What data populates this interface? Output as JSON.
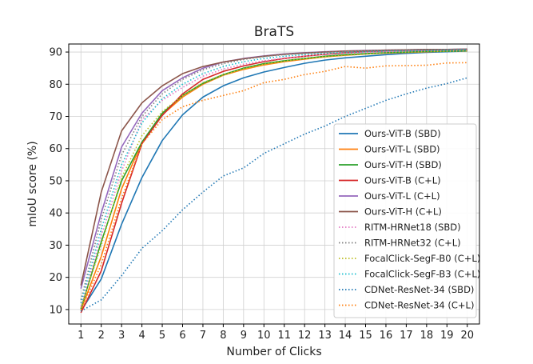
{
  "chart_data": {
    "type": "line",
    "title": "BraTS",
    "xlabel": "Number of Clicks",
    "ylabel": "mIoU score (%)",
    "x": [
      1,
      2,
      3,
      4,
      5,
      6,
      7,
      8,
      9,
      10,
      11,
      12,
      13,
      14,
      15,
      16,
      17,
      18,
      19,
      20
    ],
    "xlim": [
      0.4,
      20.6
    ],
    "ylim": [
      5.5,
      92.5
    ],
    "yticks": [
      10,
      20,
      30,
      40,
      50,
      60,
      70,
      80,
      90
    ],
    "grid": true,
    "legend_position": "lower-right",
    "series": [
      {
        "name": "Ours-ViT-B (SBD)",
        "color": "#1f77b4",
        "style": "solid",
        "values": [
          9.5,
          19.5,
          36.5,
          51,
          62.5,
          70.5,
          76,
          79.5,
          82,
          83.8,
          85.2,
          86.5,
          87.5,
          88.2,
          88.7,
          89.2,
          89.6,
          89.9,
          90.1,
          90.3
        ]
      },
      {
        "name": "Ours-ViT-L (SBD)",
        "color": "#ff7f0e",
        "style": "solid",
        "values": [
          9.8,
          26.5,
          47.5,
          62,
          70.5,
          76,
          80,
          82.8,
          84.6,
          86,
          87,
          87.8,
          88.5,
          89,
          89.4,
          89.7,
          89.9,
          90.1,
          90.3,
          90.4
        ]
      },
      {
        "name": "Ours-ViT-H (SBD)",
        "color": "#2ca02c",
        "style": "solid",
        "values": [
          10.2,
          31,
          50,
          62,
          71,
          76.5,
          80.3,
          83,
          85,
          86.4,
          87.3,
          88,
          88.7,
          89.2,
          89.5,
          89.8,
          90,
          90.2,
          90.3,
          90.4
        ]
      },
      {
        "name": "Ours-ViT-B (C+L)",
        "color": "#d62728",
        "style": "solid",
        "values": [
          9,
          22,
          43,
          61.5,
          70.3,
          77,
          81.5,
          84,
          85.7,
          87,
          88,
          88.7,
          89.3,
          89.8,
          90.1,
          90.3,
          90.5,
          90.6,
          90.7,
          90.8
        ]
      },
      {
        "name": "Ours-ViT-L (C+L)",
        "color": "#9467bd",
        "style": "solid",
        "values": [
          16.5,
          40,
          60.5,
          71,
          78,
          82,
          85,
          86.9,
          88,
          88.8,
          89.4,
          89.8,
          90.1,
          90.3,
          90.5,
          90.6,
          90.7,
          90.8,
          90.8,
          90.9
        ]
      },
      {
        "name": "Ours-ViT-H (C+L)",
        "color": "#8c564b",
        "style": "solid",
        "values": [
          17.5,
          46.5,
          65.5,
          74.2,
          79.5,
          83.3,
          85.5,
          86.9,
          87.9,
          88.7,
          89.3,
          89.7,
          90,
          90.3,
          90.4,
          90.6,
          90.7,
          90.8,
          90.8,
          90.9
        ]
      },
      {
        "name": "RITM-HRNet18 (SBD)",
        "color": "#e377c2",
        "style": "dotted",
        "values": [
          11,
          33,
          53,
          69,
          75,
          79,
          82.5,
          84.7,
          86.2,
          87.3,
          88.1,
          88.7,
          89.2,
          89.6,
          89.9,
          90.1,
          90.3,
          90.4,
          90.5,
          90.6
        ]
      },
      {
        "name": "RITM-HRNet32 (C+L)",
        "color": "#7f7f7f",
        "style": "dotted",
        "values": [
          13,
          38,
          58,
          70,
          77,
          81.5,
          84.5,
          86.4,
          87.7,
          88.6,
          89.2,
          89.6,
          89.9,
          90.2,
          90.4,
          90.5,
          90.6,
          90.7,
          90.8,
          90.9
        ]
      },
      {
        "name": "FocalClick-SegF-B0 (C+L)",
        "color": "#bcbd22",
        "style": "dotted",
        "values": [
          10.5,
          30,
          51,
          64,
          71.5,
          76.5,
          80.5,
          83,
          84.8,
          86.2,
          87.2,
          88,
          88.6,
          89,
          89.4,
          89.7,
          89.9,
          90.1,
          90.2,
          90.3
        ]
      },
      {
        "name": "FocalClick-SegF-B3 (C+L)",
        "color": "#17becf",
        "style": "dotted",
        "values": [
          12,
          35,
          55,
          68,
          75.5,
          80,
          83.3,
          85.5,
          87,
          88,
          88.7,
          89.2,
          89.6,
          89.9,
          90.1,
          90.3,
          90.4,
          90.5,
          90.6,
          90.7
        ]
      },
      {
        "name": "CDNet-ResNet-34 (SBD)",
        "color": "#1f77b4",
        "style": "dotted",
        "values": [
          9.5,
          13,
          20.5,
          29,
          34.5,
          41,
          46.5,
          51.5,
          54,
          58.5,
          61.5,
          64.5,
          67,
          70,
          72.5,
          75,
          77,
          78.8,
          80.2,
          82
        ]
      },
      {
        "name": "CDNet-ResNet-34 (C+L)",
        "color": "#ff7f0e",
        "style": "dotted",
        "values": [
          9.8,
          24,
          44.5,
          61.5,
          69,
          73,
          75,
          76.5,
          78,
          80.5,
          81.5,
          83,
          84,
          85.5,
          85,
          85.7,
          85.8,
          85.9,
          86.6,
          86.7
        ]
      }
    ]
  }
}
